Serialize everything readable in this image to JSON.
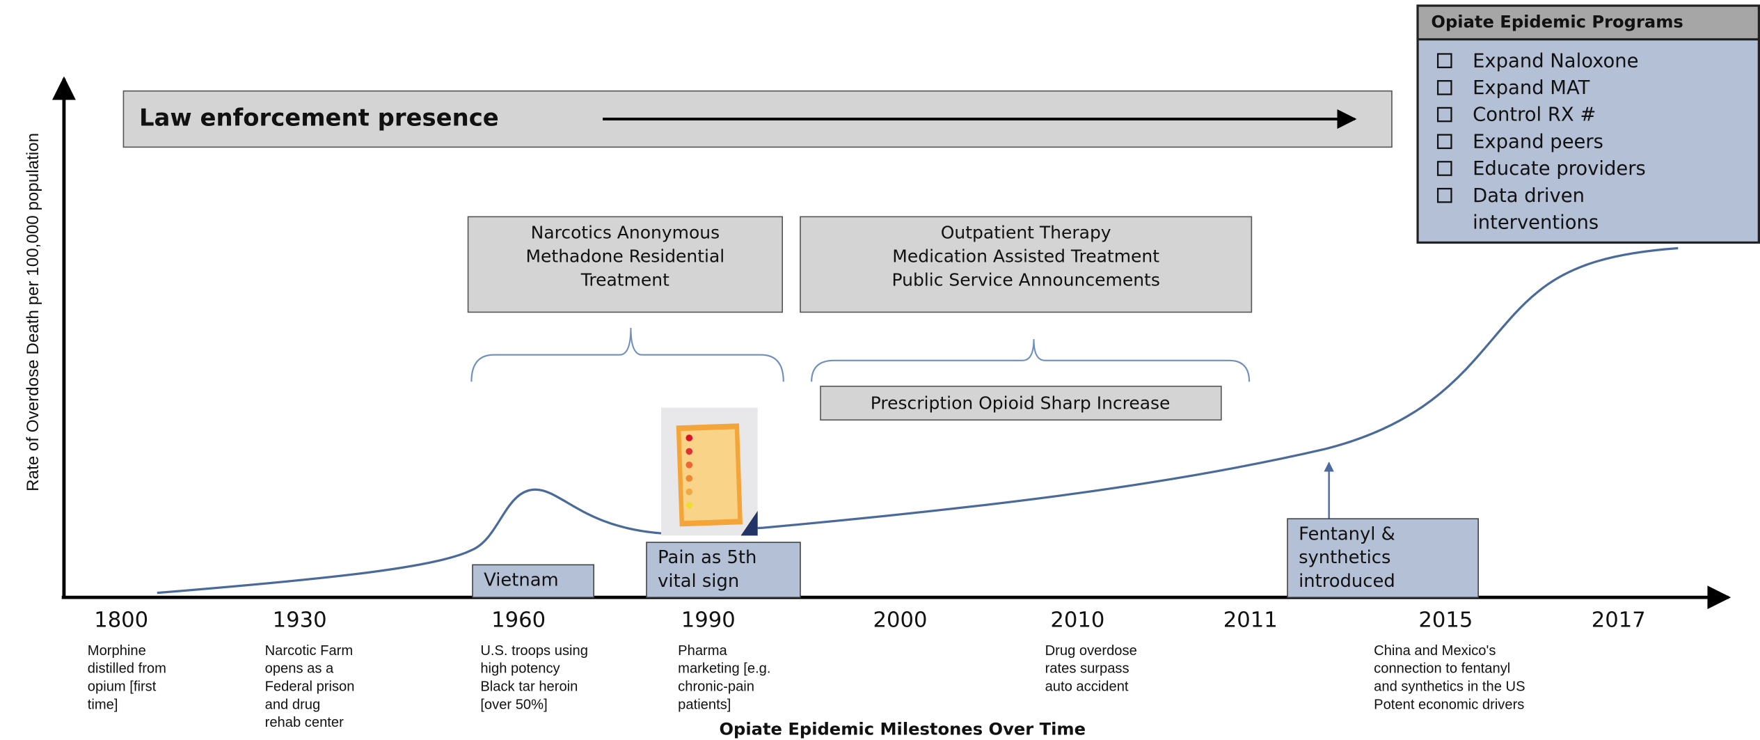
{
  "y_axis_label": "Rate of Overdose  Death per 100,000 population",
  "x_axis_label": "Opiate Epidemic Milestones Over Time",
  "law_enforcement": "Law enforcement presence",
  "treatment_boxes": [
    {
      "lines": [
        "Narcotics Anonymous",
        "Methadone Residential",
        "Treatment"
      ]
    },
    {
      "lines": [
        "Outpatient Therapy",
        "Medication Assisted Treatment",
        "Public Service Announcements"
      ]
    }
  ],
  "prescription_box": "Prescription Opioid Sharp Increase",
  "event_boxes": [
    {
      "lines": [
        "Vietnam"
      ]
    },
    {
      "lines": [
        "Pain as 5th",
        "vital sign"
      ]
    },
    {
      "lines": [
        "Fentanyl &",
        "synthetics",
        "introduced"
      ]
    }
  ],
  "years": [
    "1800",
    "1930",
    "1960",
    "1990",
    "2000",
    "2010",
    "2011",
    "2015",
    "2017"
  ],
  "milestones": [
    {
      "lines": [
        "Morphine",
        "distilled from",
        "opium [first",
        "time]"
      ]
    },
    {
      "lines": [
        "Narcotic Farm",
        "opens as a",
        "Federal prison",
        "and drug",
        "rehab center"
      ]
    },
    {
      "lines": [
        "U.S. troops using",
        "high potency",
        "Black tar heroin",
        "[over 50%]"
      ]
    },
    {
      "lines": [
        "Pharma",
        "marketing [e.g.",
        "chronic-pain",
        "patients]"
      ]
    },
    {
      "lines": [
        "Drug overdose",
        "rates surpass",
        "auto accident"
      ]
    },
    {
      "lines": [
        "China and Mexico's",
        "connection to fentanyl",
        "and synthetics in the US",
        "Potent economic drivers"
      ]
    }
  ],
  "programs": {
    "title": "Opiate Epidemic Programs",
    "items": [
      [
        "Expand Naloxone"
      ],
      [
        "Expand MAT"
      ],
      [
        "Control RX  #"
      ],
      [
        "Expand peers"
      ],
      [
        "Educate providers"
      ],
      [
        "Data driven",
        "interventions"
      ]
    ]
  }
}
